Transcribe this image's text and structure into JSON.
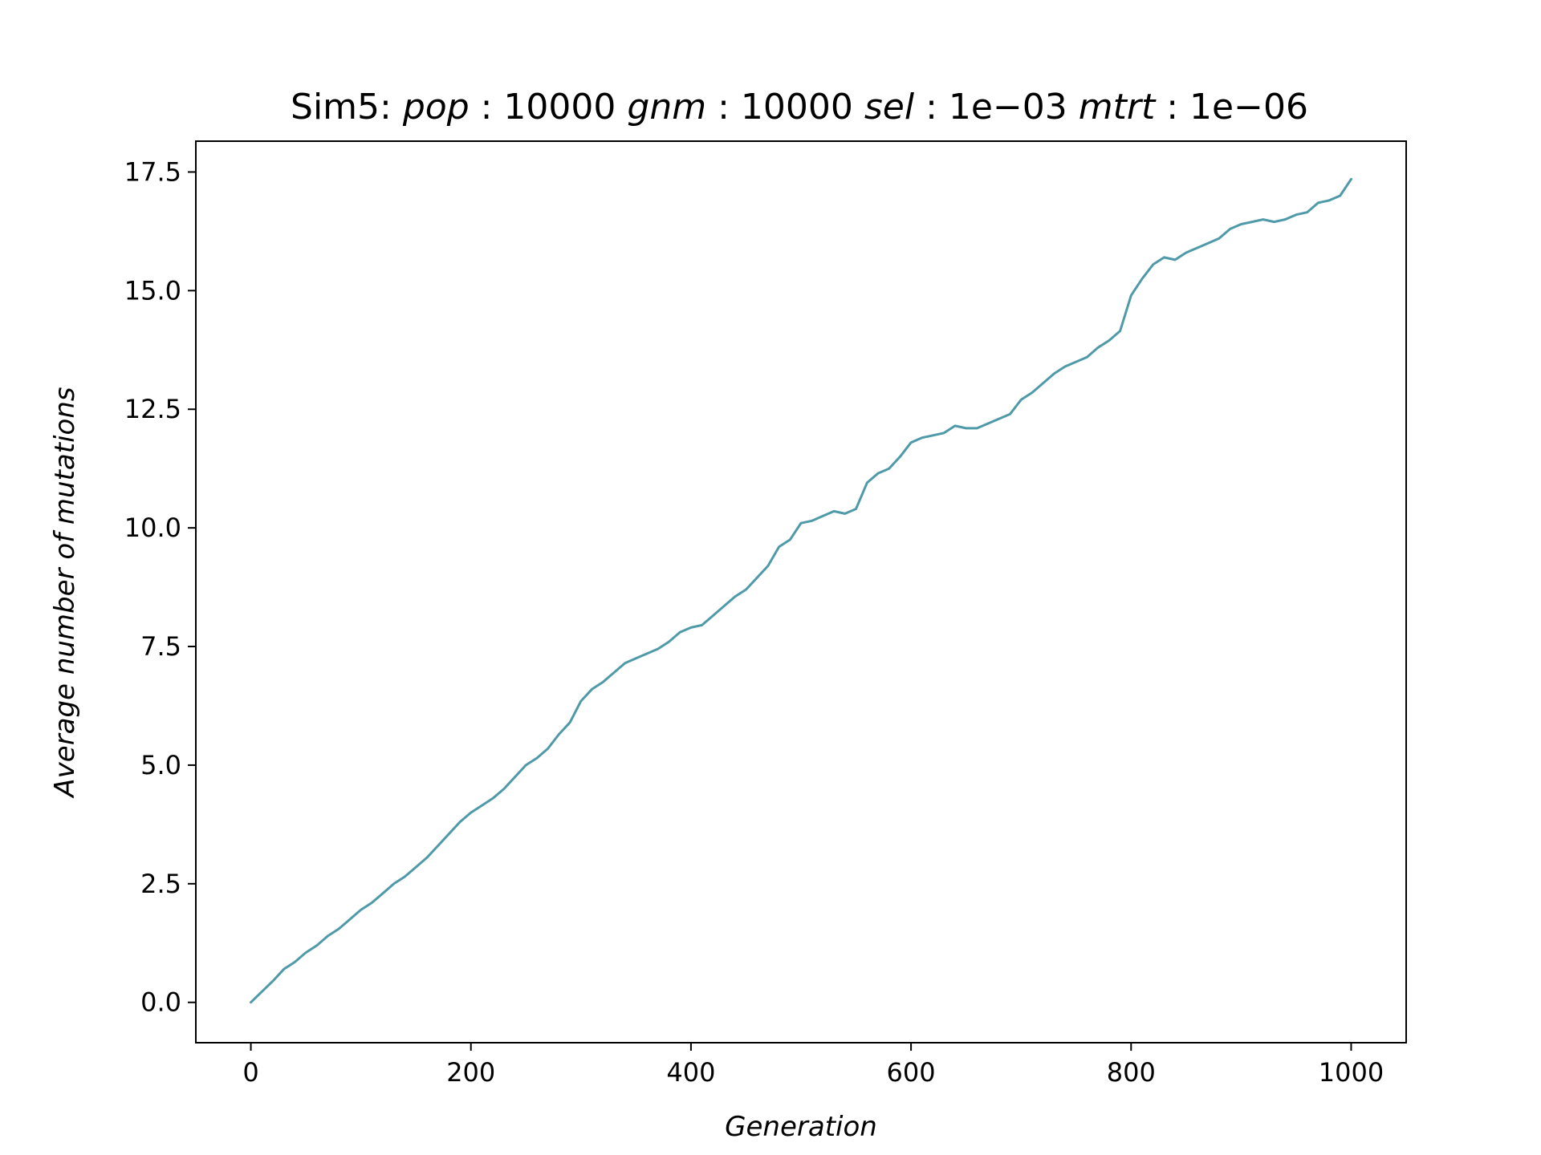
{
  "chart_data": {
    "type": "line",
    "title": {
      "prefix": "Sim5: ",
      "params": [
        {
          "name": "pop",
          "value": "10000"
        },
        {
          "name": "gnm",
          "value": "10000"
        },
        {
          "name": "sel",
          "value": "1e−03"
        },
        {
          "name": "mtrt",
          "value": "1e−06"
        }
      ]
    },
    "xlabel": "Generation",
    "ylabel": "Average number of mutations",
    "xlim": [
      -50,
      1050
    ],
    "ylim": [
      -0.85,
      18.15
    ],
    "xticks": [
      0,
      200,
      400,
      600,
      800,
      1000
    ],
    "xtick_labels": [
      "0",
      "200",
      "400",
      "600",
      "800",
      "1000"
    ],
    "yticks": [
      0.0,
      2.5,
      5.0,
      7.5,
      10.0,
      12.5,
      15.0,
      17.5
    ],
    "ytick_labels": [
      "0.0",
      "2.5",
      "5.0",
      "7.5",
      "10.0",
      "12.5",
      "15.0",
      "17.5"
    ],
    "grid": false,
    "series": [
      {
        "color": "#4f9aa9",
        "x": [
          0,
          20,
          30,
          40,
          50,
          60,
          70,
          80,
          90,
          100,
          110,
          120,
          130,
          140,
          150,
          160,
          170,
          180,
          190,
          200,
          210,
          220,
          230,
          240,
          250,
          260,
          270,
          280,
          290,
          300,
          310,
          320,
          330,
          340,
          350,
          360,
          370,
          380,
          390,
          400,
          410,
          420,
          430,
          440,
          450,
          460,
          470,
          480,
          490,
          500,
          510,
          520,
          530,
          540,
          550,
          560,
          570,
          580,
          590,
          600,
          610,
          620,
          630,
          640,
          650,
          660,
          670,
          680,
          690,
          700,
          710,
          720,
          730,
          740,
          750,
          760,
          770,
          780,
          790,
          800,
          810,
          820,
          830,
          840,
          850,
          860,
          870,
          880,
          890,
          900,
          910,
          920,
          930,
          940,
          950,
          960,
          970,
          980,
          990,
          1000
        ],
        "y": [
          0.0,
          0.45,
          0.7,
          0.85,
          1.05,
          1.2,
          1.4,
          1.55,
          1.75,
          1.95,
          2.1,
          2.3,
          2.5,
          2.65,
          2.85,
          3.05,
          3.3,
          3.55,
          3.8,
          4.0,
          4.15,
          4.3,
          4.5,
          4.75,
          5.0,
          5.15,
          5.35,
          5.65,
          5.9,
          6.35,
          6.6,
          6.75,
          6.95,
          7.15,
          7.25,
          7.35,
          7.45,
          7.6,
          7.8,
          7.9,
          7.95,
          8.15,
          8.35,
          8.55,
          8.7,
          8.95,
          9.2,
          9.6,
          9.75,
          10.1,
          10.15,
          10.25,
          10.35,
          10.3,
          10.4,
          10.95,
          11.15,
          11.25,
          11.5,
          11.8,
          11.9,
          11.95,
          12.0,
          12.15,
          12.1,
          12.1,
          12.2,
          12.3,
          12.4,
          12.7,
          12.85,
          13.05,
          13.25,
          13.4,
          13.5,
          13.6,
          13.8,
          13.95,
          14.15,
          14.9,
          15.25,
          15.55,
          15.7,
          15.65,
          15.8,
          15.9,
          16.0,
          16.1,
          16.3,
          16.4,
          16.45,
          16.5,
          16.45,
          16.5,
          16.6,
          16.65,
          16.85,
          16.9,
          17.0,
          17.35
        ]
      }
    ]
  }
}
